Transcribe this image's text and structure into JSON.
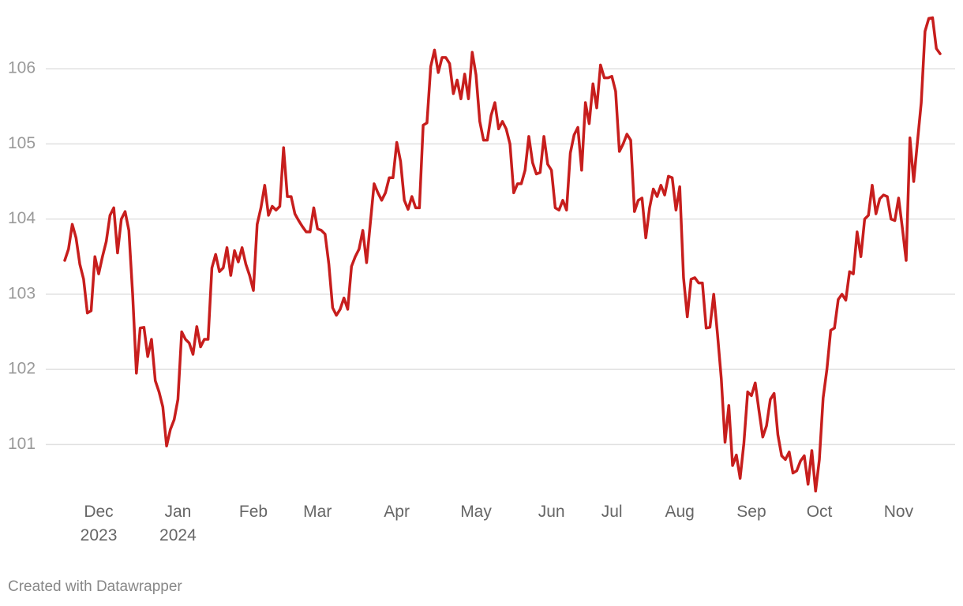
{
  "chart_data": {
    "type": "line",
    "credit": "Created with Datawrapper",
    "categories": [
      null,
      null,
      null,
      null,
      null,
      null,
      null,
      null,
      null,
      "Dec\n2023",
      null,
      null,
      null,
      null,
      null,
      null,
      null,
      null,
      null,
      null,
      null,
      null,
      null,
      null,
      null,
      null,
      null,
      null,
      null,
      null,
      "Jan\n2024",
      null,
      null,
      null,
      null,
      null,
      null,
      null,
      null,
      null,
      null,
      null,
      null,
      null,
      null,
      null,
      null,
      null,
      null,
      null,
      "Feb",
      null,
      null,
      null,
      null,
      null,
      null,
      null,
      null,
      null,
      null,
      null,
      null,
      null,
      null,
      null,
      null,
      "Mar",
      null,
      null,
      null,
      null,
      null,
      null,
      null,
      null,
      null,
      null,
      null,
      null,
      null,
      null,
      null,
      null,
      null,
      null,
      null,
      null,
      "Apr",
      null,
      null,
      null,
      null,
      null,
      null,
      null,
      null,
      null,
      null,
      null,
      null,
      null,
      null,
      null,
      null,
      null,
      null,
      null,
      null,
      "May",
      null,
      null,
      null,
      null,
      null,
      null,
      null,
      null,
      null,
      null,
      null,
      null,
      null,
      null,
      null,
      null,
      null,
      null,
      null,
      "Jun",
      null,
      null,
      null,
      null,
      null,
      null,
      null,
      null,
      null,
      null,
      null,
      null,
      null,
      null,
      null,
      "Jul",
      null,
      null,
      null,
      null,
      null,
      null,
      null,
      null,
      null,
      null,
      null,
      null,
      null,
      null,
      null,
      null,
      null,
      "Aug",
      null,
      null,
      null,
      null,
      null,
      null,
      null,
      null,
      null,
      null,
      null,
      null,
      null,
      null,
      null,
      null,
      null,
      null,
      "Sep",
      null,
      null,
      null,
      null,
      null,
      null,
      null,
      null,
      null,
      null,
      null,
      null,
      null,
      null,
      null,
      null,
      null,
      "Oct",
      null,
      null,
      null,
      null,
      null,
      null,
      null,
      null,
      null,
      null,
      null,
      null,
      null,
      null,
      null,
      null,
      null,
      null,
      null,
      null,
      "Nov",
      null,
      null,
      null,
      null,
      null,
      null,
      null,
      null,
      null,
      null,
      null
    ],
    "values": [
      103.45,
      103.6,
      103.93,
      103.75,
      103.4,
      103.2,
      102.75,
      102.78,
      103.5,
      103.27,
      103.5,
      103.7,
      104.05,
      104.15,
      103.55,
      104.0,
      104.1,
      103.85,
      103.0,
      101.95,
      102.55,
      102.56,
      102.17,
      102.4,
      101.85,
      101.7,
      101.5,
      100.98,
      101.2,
      101.33,
      101.6,
      102.5,
      102.4,
      102.35,
      102.2,
      102.57,
      102.3,
      102.4,
      102.4,
      103.35,
      103.53,
      103.3,
      103.35,
      103.62,
      103.25,
      103.58,
      103.43,
      103.62,
      103.4,
      103.25,
      103.05,
      103.93,
      104.15,
      104.45,
      104.05,
      104.17,
      104.12,
      104.17,
      104.95,
      104.3,
      104.3,
      104.07,
      103.98,
      103.9,
      103.83,
      103.83,
      104.15,
      103.87,
      103.85,
      103.8,
      103.4,
      102.82,
      102.72,
      102.8,
      102.95,
      102.8,
      103.37,
      103.5,
      103.6,
      103.85,
      103.42,
      103.95,
      104.47,
      104.35,
      104.25,
      104.35,
      104.55,
      104.55,
      105.02,
      104.77,
      104.25,
      104.13,
      104.3,
      104.15,
      104.15,
      105.25,
      105.28,
      106.03,
      106.25,
      105.95,
      106.15,
      106.15,
      106.07,
      105.67,
      105.85,
      105.6,
      105.93,
      105.6,
      106.22,
      105.92,
      105.3,
      105.05,
      105.05,
      105.38,
      105.55,
      105.2,
      105.3,
      105.2,
      105.0,
      104.35,
      104.47,
      104.47,
      104.65,
      105.1,
      104.75,
      104.6,
      104.62,
      105.1,
      104.73,
      104.65,
      104.15,
      104.12,
      104.25,
      104.12,
      104.88,
      105.12,
      105.22,
      104.65,
      105.55,
      105.27,
      105.8,
      105.48,
      106.05,
      105.88,
      105.88,
      105.9,
      105.7,
      104.9,
      105.0,
      105.13,
      105.05,
      104.1,
      104.25,
      104.28,
      103.75,
      104.15,
      104.4,
      104.3,
      104.45,
      104.32,
      104.57,
      104.55,
      104.12,
      104.43,
      103.22,
      102.7,
      103.2,
      103.22,
      103.15,
      103.15,
      102.55,
      102.56,
      103.0,
      102.47,
      101.88,
      101.03,
      101.52,
      100.72,
      100.86,
      100.55,
      101.02,
      101.7,
      101.65,
      101.82,
      101.45,
      101.1,
      101.25,
      101.6,
      101.68,
      101.13,
      100.85,
      100.8,
      100.9,
      100.62,
      100.65,
      100.78,
      100.85,
      100.47,
      100.92,
      100.38,
      100.8,
      101.62,
      102.0,
      102.52,
      102.55,
      102.93,
      103.0,
      102.92,
      103.3,
      103.27,
      103.83,
      103.5,
      104.0,
      104.05,
      104.45,
      104.07,
      104.27,
      104.32,
      104.3,
      104.0,
      103.98,
      104.28,
      103.88,
      103.45,
      105.08,
      104.5,
      105.03,
      105.55,
      106.5,
      106.67,
      106.68,
      106.27,
      106.2
    ],
    "color": "#c71e1d",
    "ylim": [
      100.3,
      106.8
    ],
    "yticks": [
      101,
      102,
      103,
      104,
      105,
      106
    ],
    "grid": true
  }
}
